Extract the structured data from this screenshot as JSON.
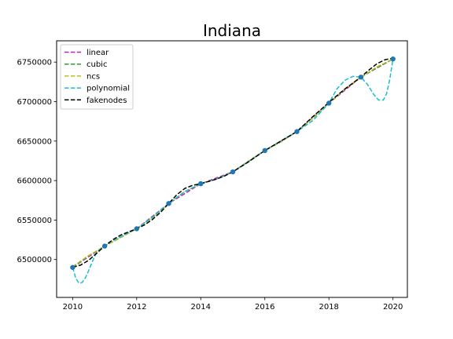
{
  "chart_data": {
    "type": "line",
    "title": "Indiana",
    "xlabel": "",
    "ylabel": "",
    "xlim": [
      2009.5,
      2020.45
    ],
    "ylim": [
      6452000,
      6777000
    ],
    "xticks": [
      2010,
      2012,
      2014,
      2016,
      2018,
      2020
    ],
    "xtick_labels": [
      "2010",
      "2012",
      "2014",
      "2016",
      "2018",
      "2020"
    ],
    "yticks": [
      6500000,
      6550000,
      6600000,
      6650000,
      6700000,
      6750000
    ],
    "ytick_labels": [
      "6500000",
      "6550000",
      "6600000",
      "6650000",
      "6700000",
      "6750000"
    ],
    "grid": false,
    "legend_position": "top-left",
    "points": {
      "x": [
        2010,
        2011,
        2012,
        2013,
        2014,
        2015,
        2016,
        2017,
        2018,
        2019,
        2020
      ],
      "y": [
        6490000,
        6517000,
        6539000,
        6571000,
        6596000,
        6611000,
        6638000,
        6662000,
        6698000,
        6731000,
        6754000
      ],
      "color": "#1f77b4"
    },
    "series": [
      {
        "name": "linear",
        "color": "#c020c0",
        "x": [
          2010,
          2011,
          2012,
          2013,
          2014,
          2015,
          2016,
          2017,
          2018,
          2019,
          2020
        ],
        "y": [
          6490000,
          6517000,
          6539000,
          6571000,
          6596000,
          6611000,
          6638000,
          6662000,
          6698000,
          6731000,
          6754000
        ]
      },
      {
        "name": "cubic",
        "color": "#2ca02c",
        "x": [
          2010,
          2010.5,
          2011,
          2011.5,
          2012,
          2012.5,
          2013,
          2013.5,
          2014,
          2014.5,
          2015,
          2015.5,
          2016,
          2016.5,
          2017,
          2017.5,
          2018,
          2018.5,
          2019,
          2019.5,
          2020
        ],
        "y": [
          6490000,
          6504500,
          6517000,
          6528000,
          6539000,
          6553000,
          6571000,
          6586000,
          6596000,
          6602000,
          6611000,
          6625000,
          6638000,
          6649000,
          6662000,
          6679000,
          6698000,
          6716000,
          6731000,
          6743000,
          6754000
        ]
      },
      {
        "name": "ncs",
        "color": "#bcbd22",
        "x": [
          2010,
          2010.5,
          2011,
          2011.5,
          2012,
          2012.5,
          2013,
          2013.5,
          2014,
          2014.5,
          2015,
          2015.5,
          2016,
          2016.5,
          2017,
          2017.5,
          2018,
          2018.5,
          2019,
          2019.5,
          2020
        ],
        "y": [
          6491000,
          6505000,
          6517000,
          6528000,
          6539000,
          6553000,
          6571000,
          6586000,
          6596000,
          6602000,
          6611000,
          6625000,
          6638000,
          6649000,
          6662000,
          6679000,
          6698000,
          6716000,
          6731000,
          6744000,
          6754000
        ]
      },
      {
        "name": "polynomial",
        "color": "#17becf",
        "x": [
          2010,
          2010.1,
          2010.2,
          2010.3,
          2010.4,
          2010.5,
          2010.6,
          2010.7,
          2010.8,
          2011,
          2011.25,
          2011.5,
          2012,
          2012.5,
          2013,
          2013.5,
          2014,
          2014.5,
          2015,
          2015.5,
          2016,
          2016.5,
          2017,
          2017.5,
          2018,
          2018.25,
          2018.5,
          2018.75,
          2019,
          2019.2,
          2019.4,
          2019.55,
          2019.7,
          2019.8,
          2019.9,
          2020
        ],
        "y": [
          6490000,
          6476000,
          6470000,
          6471000,
          6477000,
          6486000,
          6496000,
          6505000,
          6511000,
          6517000,
          6524000,
          6529000,
          6539000,
          6554000,
          6571000,
          6586000,
          6596000,
          6602000,
          6611000,
          6624000,
          6638000,
          6650000,
          6662000,
          6676000,
          6698000,
          6716000,
          6727000,
          6732000,
          6731000,
          6722000,
          6709000,
          6702000,
          6702000,
          6710000,
          6728000,
          6754000
        ]
      },
      {
        "name": "fakenodes",
        "color": "#000000",
        "x": [
          2010,
          2010.25,
          2010.5,
          2010.75,
          2011,
          2011.25,
          2011.5,
          2011.75,
          2012,
          2012.25,
          2012.5,
          2012.75,
          2013,
          2013.25,
          2013.5,
          2013.75,
          2014,
          2014.25,
          2014.5,
          2014.75,
          2015,
          2015.5,
          2016,
          2016.5,
          2017,
          2017.5,
          2018,
          2018.5,
          2019,
          2019.25,
          2019.5,
          2019.75,
          2020
        ],
        "y": [
          6490000,
          6493000,
          6499000,
          6508000,
          6517000,
          6525000,
          6531000,
          6535000,
          6539000,
          6544000,
          6551000,
          6560000,
          6571000,
          6582000,
          6590000,
          6594000,
          6596000,
          6599000,
          6602000,
          6606000,
          6611000,
          6624000,
          6638000,
          6650000,
          6662000,
          6681000,
          6699000,
          6716000,
          6731000,
          6740000,
          6748000,
          6753000,
          6755000
        ]
      }
    ]
  }
}
